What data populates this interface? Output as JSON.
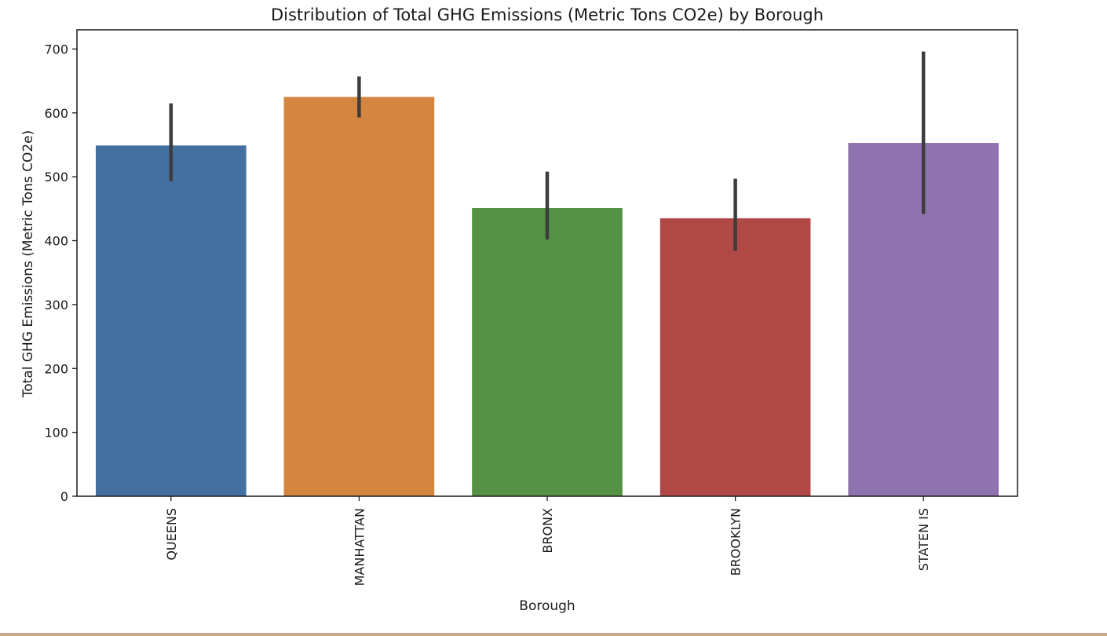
{
  "chart_data": {
    "type": "bar",
    "title": "Distribution of Total GHG Emissions (Metric Tons CO2e) by Borough",
    "xlabel": "Borough",
    "ylabel": "Total GHG Emissions (Metric Tons CO2e)",
    "ylim": [
      0,
      730
    ],
    "yticks": [
      0,
      100,
      200,
      300,
      400,
      500,
      600,
      700
    ],
    "categories": [
      "QUEENS",
      "MANHATTAN",
      "BRONX",
      "BROOKLYN",
      "STATEN IS"
    ],
    "values": [
      549,
      625,
      451,
      435,
      553
    ],
    "error_low": [
      493,
      593,
      402,
      384,
      442
    ],
    "error_high": [
      615,
      657,
      508,
      497,
      696
    ],
    "colors": [
      "#4470a0",
      "#d48540",
      "#559245",
      "#b04845",
      "#8f73ae"
    ],
    "error_color": "#3d3d3d",
    "grid": false,
    "legend": "none"
  }
}
